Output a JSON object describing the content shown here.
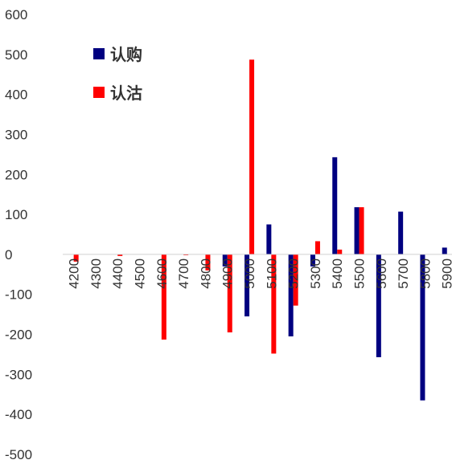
{
  "chart_data": {
    "type": "bar",
    "categories": [
      "4200",
      "4300",
      "4400",
      "4500",
      "4600",
      "4700",
      "4800",
      "4900",
      "5000",
      "5100",
      "5200",
      "5300",
      "5400",
      "5500",
      "5600",
      "5700",
      "5800",
      "5900"
    ],
    "series": [
      {
        "name": "认购",
        "color": "#000080",
        "values": [
          0,
          0,
          0,
          0,
          0,
          0,
          0,
          -30,
          -155,
          75,
          -205,
          -30,
          243,
          118,
          -257,
          107,
          -365,
          17
        ]
      },
      {
        "name": "认沽",
        "color": "#ff0000",
        "values": [
          -18,
          0,
          -4,
          0,
          -213,
          -2,
          -40,
          -195,
          487,
          -248,
          -128,
          33,
          12,
          118,
          0,
          0,
          0,
          0
        ]
      }
    ],
    "ylim": [
      -500,
      600
    ],
    "yticks": [
      600,
      500,
      400,
      300,
      200,
      100,
      0,
      -100,
      -200,
      -300,
      -400,
      -500
    ],
    "grid": false,
    "legend_position": "top-left"
  }
}
